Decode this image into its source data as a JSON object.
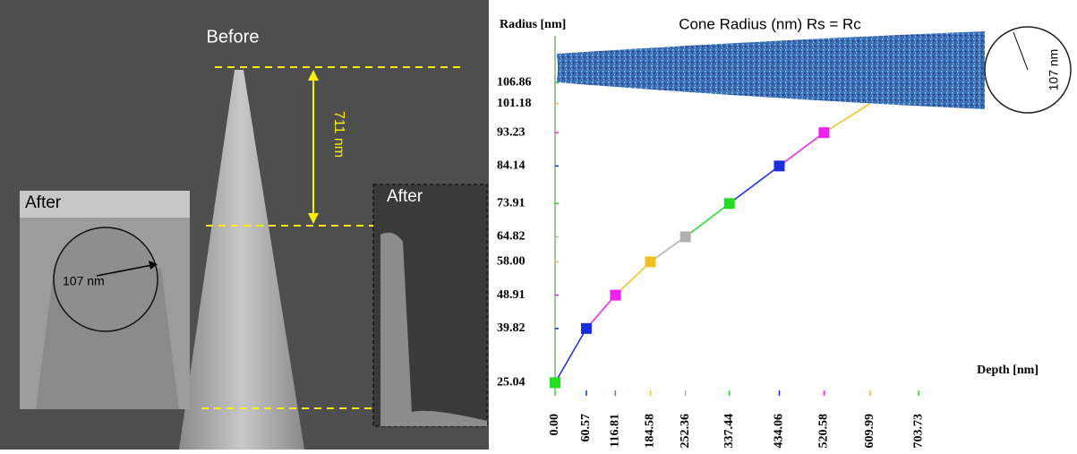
{
  "sem_panel": {
    "before_label": "Before",
    "height_label": "711 nm",
    "after_inset_label": "After",
    "after_right_label": "After",
    "radius_label": "107 nm"
  },
  "chart_data": {
    "type": "line",
    "title": "Cone Radius (nm)  Rs = Rc",
    "y_label": "Radius [nm]",
    "x_label": "Depth [nm]",
    "annotation": "107 nm",
    "x": [
      {
        "value": 0,
        "label": "0.00"
      },
      60.57,
      116.81,
      184.58,
      252.36,
      337.44,
      434.06,
      520.58,
      609.99
    ],
    "values": [
      25.04,
      39.82,
      48.91,
      {
        "value": 58,
        "label": "58.00"
      },
      64.82,
      73.91,
      84.14,
      93.23,
      101.18
    ],
    "colors": [
      "#22dd22",
      "#1a2ee0",
      "#ee22ee",
      "#f0c020",
      "#b0b0b0",
      "#22dd22",
      "#1a2ee0",
      "#ee22ee",
      "#f0c020"
    ],
    "xlim": [
      0,
      740
    ],
    "ylim": [
      20,
      115
    ],
    "xticks": [
      {
        "value": 0,
        "label": "0.00"
      },
      60.57,
      116.81,
      184.58,
      252.36,
      337.44,
      434.06,
      520.58,
      609.99,
      703.73
    ],
    "yticks": [
      25.04,
      39.82,
      48.91,
      {
        "value": 58,
        "label": "58.00"
      },
      64.82,
      73.91,
      84.14,
      93.23,
      101.18,
      106.86
    ]
  }
}
